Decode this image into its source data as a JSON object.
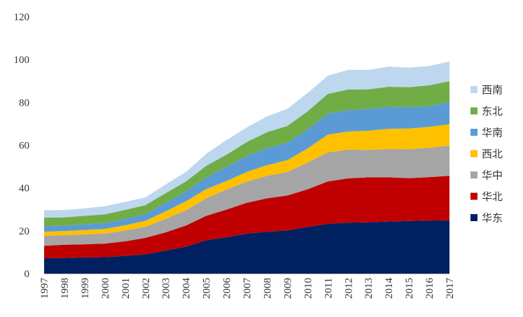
{
  "chart_data": {
    "type": "area",
    "stacked": true,
    "x": [
      "1997",
      "1998",
      "1999",
      "2000",
      "2001",
      "2002",
      "2003",
      "2004",
      "2005",
      "2006",
      "2007",
      "2008",
      "2009",
      "2010",
      "2011",
      "2012",
      "2013",
      "2014",
      "2015",
      "2016",
      "2017"
    ],
    "ylim": [
      0,
      120
    ],
    "yticks": [
      "0",
      "20",
      "40",
      "60",
      "80",
      "100",
      "120"
    ],
    "grid": false,
    "legend_position": "right",
    "series": [
      {
        "name": "华东",
        "color": "#002060",
        "values": [
          7.2,
          7.3,
          7.6,
          7.7,
          8.3,
          9.0,
          10.8,
          12.6,
          15.6,
          17.0,
          18.7,
          19.5,
          20.2,
          21.8,
          23.3,
          23.8,
          24.0,
          24.3,
          24.6,
          24.8,
          24.9
        ]
      },
      {
        "name": "华北",
        "color": "#C00000",
        "values": [
          5.8,
          6.2,
          6.1,
          6.3,
          6.8,
          7.7,
          8.5,
          9.9,
          11.4,
          12.9,
          14.4,
          15.7,
          16.3,
          17.6,
          19.8,
          20.7,
          21.0,
          20.7,
          20.0,
          20.3,
          20.8
        ]
      },
      {
        "name": "华中",
        "color": "#A5A5A5",
        "values": [
          4.6,
          4.5,
          4.6,
          4.7,
          5.0,
          5.2,
          6.3,
          7.1,
          8.2,
          9.4,
          9.9,
          10.5,
          11.0,
          12.5,
          13.6,
          13.4,
          12.8,
          13.2,
          13.5,
          13.7,
          14.1
        ]
      },
      {
        "name": "西北",
        "color": "#FFC000",
        "values": [
          2.0,
          1.9,
          2.1,
          2.2,
          2.5,
          2.8,
          3.5,
          4.2,
          4.3,
          4.0,
          4.5,
          5.0,
          5.5,
          6.6,
          8.3,
          8.5,
          9.0,
          9.5,
          9.7,
          9.8,
          10.0
        ]
      },
      {
        "name": "华南",
        "color": "#5B9BD5",
        "values": [
          2.6,
          2.5,
          2.6,
          2.7,
          2.9,
          3.2,
          3.9,
          4.7,
          5.5,
          6.7,
          7.5,
          8.0,
          8.2,
          8.9,
          9.8,
          10.0,
          10.2,
          10.3,
          10.0,
          9.6,
          10.4
        ]
      },
      {
        "name": "东北",
        "color": "#70AD47",
        "values": [
          3.9,
          3.9,
          4.0,
          4.1,
          4.3,
          4.1,
          4.6,
          4.6,
          5.4,
          5.6,
          6.5,
          7.4,
          7.8,
          8.4,
          9.2,
          9.6,
          9.1,
          9.3,
          9.3,
          9.8,
          9.7
        ]
      },
      {
        "name": "西南",
        "color": "#BDD7EE",
        "values": [
          3.5,
          3.4,
          3.5,
          3.8,
          3.7,
          3.6,
          4.1,
          4.4,
          5.6,
          6.8,
          6.8,
          7.4,
          8.0,
          8.6,
          8.5,
          9.2,
          9.1,
          9.4,
          9.2,
          9.0,
          9.2
        ]
      }
    ],
    "legend_order": [
      "西南",
      "东北",
      "华南",
      "西北",
      "华中",
      "华北",
      "华东"
    ]
  }
}
